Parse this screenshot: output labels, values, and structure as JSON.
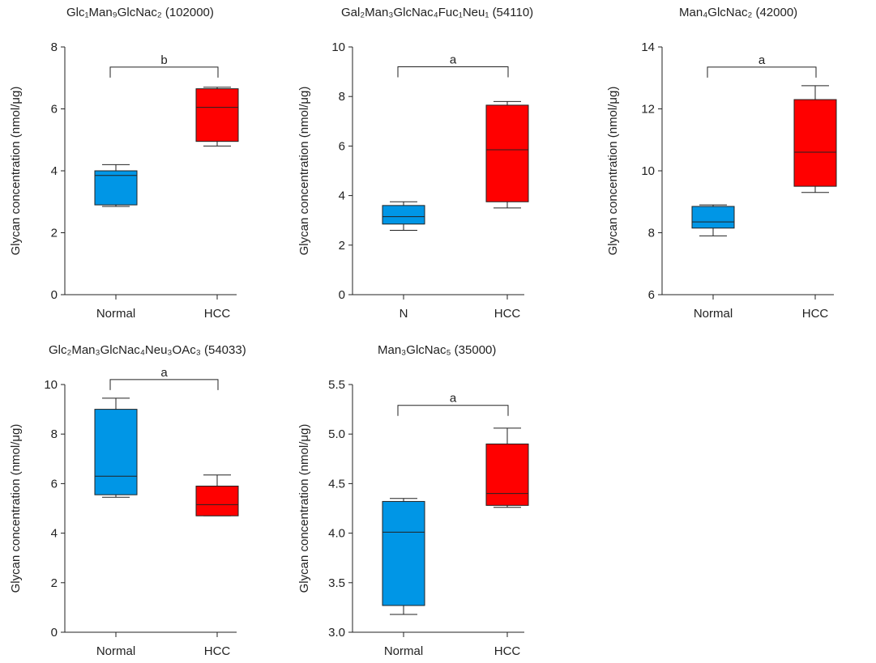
{
  "chart_data": [
    {
      "type": "box",
      "title": "Glc₁Man₉GlcNac₂ (102000)",
      "ylabel": "Glycan concentration (nmol/μg)",
      "ylim": [
        0,
        8
      ],
      "yticks": [
        "0",
        "2",
        "4",
        "6",
        "8"
      ],
      "categories": [
        "Normal",
        "HCC"
      ],
      "boxes": [
        {
          "category": "Normal",
          "min": 2.85,
          "q1": 2.9,
          "median": 3.85,
          "q3": 4.0,
          "max": 4.2,
          "color": "#0096e6"
        },
        {
          "category": "HCC",
          "min": 4.8,
          "q1": 4.95,
          "median": 6.05,
          "q3": 6.65,
          "max": 6.7,
          "color": "#ff0000"
        }
      ],
      "significance": "b",
      "bracket_y": 7.35
    },
    {
      "type": "box",
      "title": "Gal₂Man₃GlcNac₄Fuc₁Neu₁ (54110)",
      "ylabel": "Glycan concentration (nmol/μg)",
      "ylim": [
        0,
        10
      ],
      "yticks": [
        "0",
        "2",
        "4",
        "6",
        "8",
        "10"
      ],
      "categories": [
        "N",
        "HCC"
      ],
      "boxes": [
        {
          "category": "N",
          "min": 2.6,
          "q1": 2.85,
          "median": 3.15,
          "q3": 3.6,
          "max": 3.75,
          "color": "#0096e6"
        },
        {
          "category": "HCC",
          "min": 3.5,
          "q1": 3.75,
          "median": 5.85,
          "q3": 7.65,
          "max": 7.8,
          "color": "#ff0000"
        }
      ],
      "significance": "a",
      "bracket_y": 9.2
    },
    {
      "type": "box",
      "title": "Man₄GlcNac₂ (42000)",
      "ylabel": "Glycan concentration (nmol/μg)",
      "ylim": [
        6,
        14
      ],
      "yticks": [
        "6",
        "8",
        "10",
        "12",
        "14"
      ],
      "categories": [
        "Normal",
        "HCC"
      ],
      "boxes": [
        {
          "category": "Normal",
          "min": 7.9,
          "q1": 8.15,
          "median": 8.35,
          "q3": 8.85,
          "max": 8.9,
          "color": "#0096e6"
        },
        {
          "category": "HCC",
          "min": 9.3,
          "q1": 9.5,
          "median": 10.6,
          "q3": 12.3,
          "max": 12.75,
          "color": "#ff0000"
        }
      ],
      "significance": "a",
      "bracket_y": 13.35
    },
    {
      "type": "box",
      "title": "Glc₂Man₃GlcNac₄Neu₃OAc₃ (54033)",
      "ylabel": "Glycan concentration (nmol/μg)",
      "ylim": [
        0,
        10
      ],
      "yticks": [
        "0",
        "2",
        "4",
        "6",
        "8",
        "10"
      ],
      "categories": [
        "Normal",
        "HCC"
      ],
      "boxes": [
        {
          "category": "Normal",
          "min": 5.45,
          "q1": 5.55,
          "median": 6.3,
          "q3": 9.0,
          "max": 9.45,
          "color": "#0096e6"
        },
        {
          "category": "HCC",
          "min": 4.7,
          "q1": 4.7,
          "median": 5.15,
          "q3": 5.9,
          "max": 6.35,
          "color": "#ff0000"
        }
      ],
      "significance": "a",
      "bracket_y": 10.2
    },
    {
      "type": "box",
      "title": "Man₃GlcNac₅ (35000)",
      "ylabel": "Glycan concentration (nmol/μg)",
      "ylim": [
        3.0,
        5.5
      ],
      "yticks": [
        "3.0",
        "3.5",
        "4.0",
        "4.5",
        "5.0",
        "5.5"
      ],
      "categories": [
        "Normal",
        "HCC"
      ],
      "boxes": [
        {
          "category": "Normal",
          "min": 3.18,
          "q1": 3.27,
          "median": 4.01,
          "q3": 4.32,
          "max": 4.35,
          "color": "#0096e6"
        },
        {
          "category": "HCC",
          "min": 4.26,
          "q1": 4.28,
          "median": 4.4,
          "q3": 4.9,
          "max": 5.06,
          "color": "#ff0000"
        }
      ],
      "significance": "a",
      "bracket_y": 5.29
    }
  ]
}
